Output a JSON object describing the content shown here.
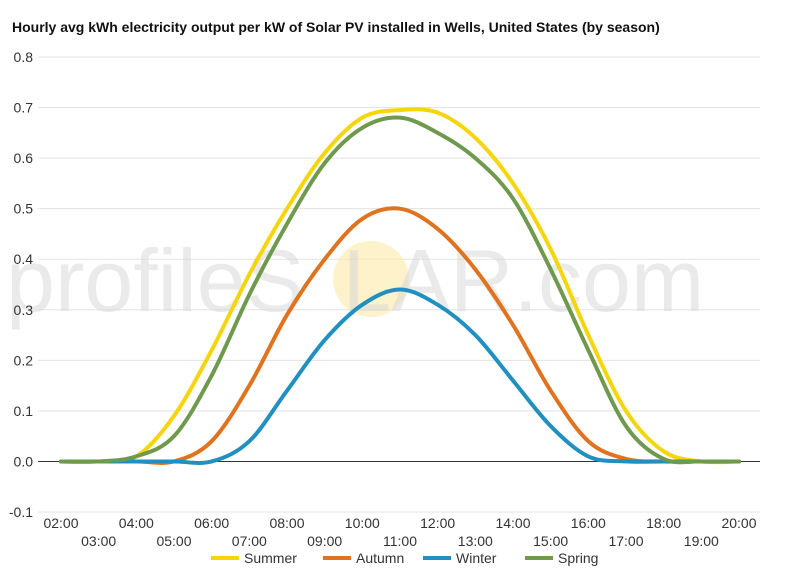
{
  "chart_data": {
    "type": "line",
    "title": "Hourly avg kWh electricity output per kW of Solar PV installed in Wells, United States (by season)",
    "xlabel": "",
    "ylabel": "",
    "x": [
      "02:00",
      "03:00",
      "04:00",
      "05:00",
      "06:00",
      "07:00",
      "08:00",
      "09:00",
      "10:00",
      "11:00",
      "12:00",
      "13:00",
      "14:00",
      "15:00",
      "16:00",
      "17:00",
      "18:00",
      "19:00",
      "20:00"
    ],
    "ylim": [
      -0.1,
      0.8
    ],
    "yticks": [
      "-0.1",
      "0.0",
      "0.1",
      "0.2",
      "0.3",
      "0.4",
      "0.5",
      "0.6",
      "0.7",
      "0.8"
    ],
    "grid": true,
    "legend_position": "bottom",
    "series": [
      {
        "name": "Summer",
        "color": "#f5d50c",
        "values": [
          0.0,
          0.0,
          0.01,
          0.09,
          0.22,
          0.37,
          0.5,
          0.61,
          0.68,
          0.695,
          0.69,
          0.64,
          0.55,
          0.42,
          0.25,
          0.1,
          0.02,
          0.0,
          0.0
        ]
      },
      {
        "name": "Autumn",
        "color": "#e0731f",
        "values": [
          0.0,
          0.0,
          0.0,
          0.0,
          0.04,
          0.15,
          0.29,
          0.4,
          0.48,
          0.5,
          0.46,
          0.38,
          0.27,
          0.14,
          0.04,
          0.005,
          0.0,
          0.0,
          0.0
        ]
      },
      {
        "name": "Winter",
        "color": "#2190c0",
        "values": [
          0.0,
          0.0,
          0.0,
          0.0,
          0.0,
          0.04,
          0.14,
          0.24,
          0.31,
          0.34,
          0.31,
          0.25,
          0.16,
          0.07,
          0.01,
          0.0,
          0.0,
          0.0,
          0.0
        ]
      },
      {
        "name": "Spring",
        "color": "#6f9a4e",
        "values": [
          0.0,
          0.0,
          0.01,
          0.05,
          0.17,
          0.33,
          0.47,
          0.59,
          0.66,
          0.68,
          0.65,
          0.6,
          0.52,
          0.38,
          0.22,
          0.07,
          0.005,
          0.0,
          0.0
        ]
      }
    ]
  },
  "watermark": {
    "text_left": "profile",
    "text_s": "S",
    "text_right": "LAR.com",
    "sun_color": "#fde9a8"
  }
}
